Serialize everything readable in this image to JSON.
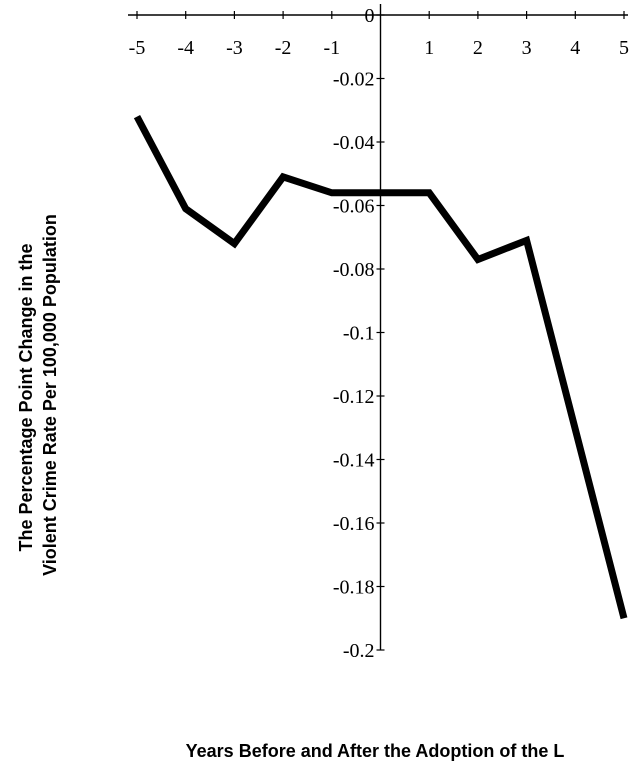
{
  "chart_data": {
    "type": "line",
    "title": "",
    "xlabel": "Years Before and After the Adoption of the L",
    "ylabel_lines": [
      "The Percentage Point Change in the",
      "Violent Crime Rate Per 100,000 Population"
    ],
    "x": [
      -5,
      -4,
      -3,
      -2,
      -1,
      1,
      2,
      3,
      5
    ],
    "y": [
      -0.032,
      -0.061,
      -0.072,
      -0.051,
      -0.056,
      -0.056,
      -0.077,
      -0.071,
      -0.19
    ],
    "xlim": [
      -5,
      5
    ],
    "ylim": [
      -0.2,
      0
    ],
    "x_ticks": [
      -5,
      -4,
      -3,
      -2,
      -1,
      1,
      2,
      3,
      4,
      5
    ],
    "x_tick_labels": [
      "-5",
      "-4",
      "-3",
      "-2",
      "-1",
      "1",
      "2",
      "3",
      "4",
      "5"
    ],
    "y_ticks": [
      0,
      -0.02,
      -0.04,
      -0.06,
      -0.08,
      -0.1,
      -0.12,
      -0.14,
      -0.16,
      -0.18,
      -0.2
    ],
    "y_tick_labels": [
      "0",
      "-0.02",
      "-0.04",
      "-0.06",
      "-0.08",
      "-0.1",
      "-0.12",
      "-0.14",
      "-0.16",
      "-0.18",
      "-0.2"
    ],
    "grid": false,
    "legend": false,
    "line_color": "#000000"
  }
}
